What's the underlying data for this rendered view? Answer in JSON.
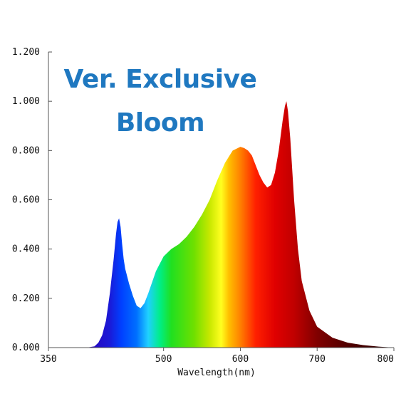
{
  "chart_data": {
    "type": "area",
    "title_lines": [
      "Ver. Exclusive",
      "Bloom"
    ],
    "title_color": "#1f78c0",
    "xlabel": "Wavelength(nm)",
    "ylabel": "",
    "xlim": [
      350,
      800
    ],
    "ylim": [
      0,
      1.2
    ],
    "x_ticks": [
      350,
      500,
      600,
      700,
      800
    ],
    "x_tick_labels": [
      "350",
      "500",
      "600",
      "700",
      "800"
    ],
    "y_ticks": [
      0,
      0.2,
      0.4,
      0.6,
      0.8,
      1.0,
      1.2
    ],
    "y_tick_labels": [
      "0.000",
      "0.200",
      "0.400",
      "0.600",
      "0.800",
      "1.000",
      "1.200"
    ],
    "grid": false,
    "fill": "visible-spectrum gradient by wavelength",
    "series": [
      {
        "x": [
          400,
          410,
          415,
          420,
          425,
          430,
          435,
          438,
          440,
          442,
          444,
          446,
          448,
          450,
          455,
          460,
          465,
          470,
          475,
          480,
          490,
          500,
          510,
          520,
          530,
          540,
          550,
          560,
          570,
          580,
          590,
          600,
          605,
          610,
          615,
          620,
          625,
          630,
          635,
          640,
          645,
          650,
          655,
          658,
          660,
          662,
          665,
          670,
          675,
          680,
          690,
          700,
          720,
          740,
          760,
          780,
          800
        ],
        "y": [
          0.0,
          0.005,
          0.02,
          0.05,
          0.11,
          0.22,
          0.36,
          0.46,
          0.51,
          0.525,
          0.49,
          0.42,
          0.36,
          0.32,
          0.26,
          0.21,
          0.17,
          0.16,
          0.18,
          0.22,
          0.31,
          0.37,
          0.4,
          0.42,
          0.45,
          0.49,
          0.54,
          0.6,
          0.68,
          0.75,
          0.8,
          0.815,
          0.81,
          0.8,
          0.78,
          0.74,
          0.7,
          0.67,
          0.65,
          0.66,
          0.71,
          0.8,
          0.92,
          0.98,
          1.0,
          0.96,
          0.85,
          0.6,
          0.4,
          0.27,
          0.15,
          0.085,
          0.04,
          0.02,
          0.01,
          0.004,
          0.0
        ]
      }
    ]
  }
}
